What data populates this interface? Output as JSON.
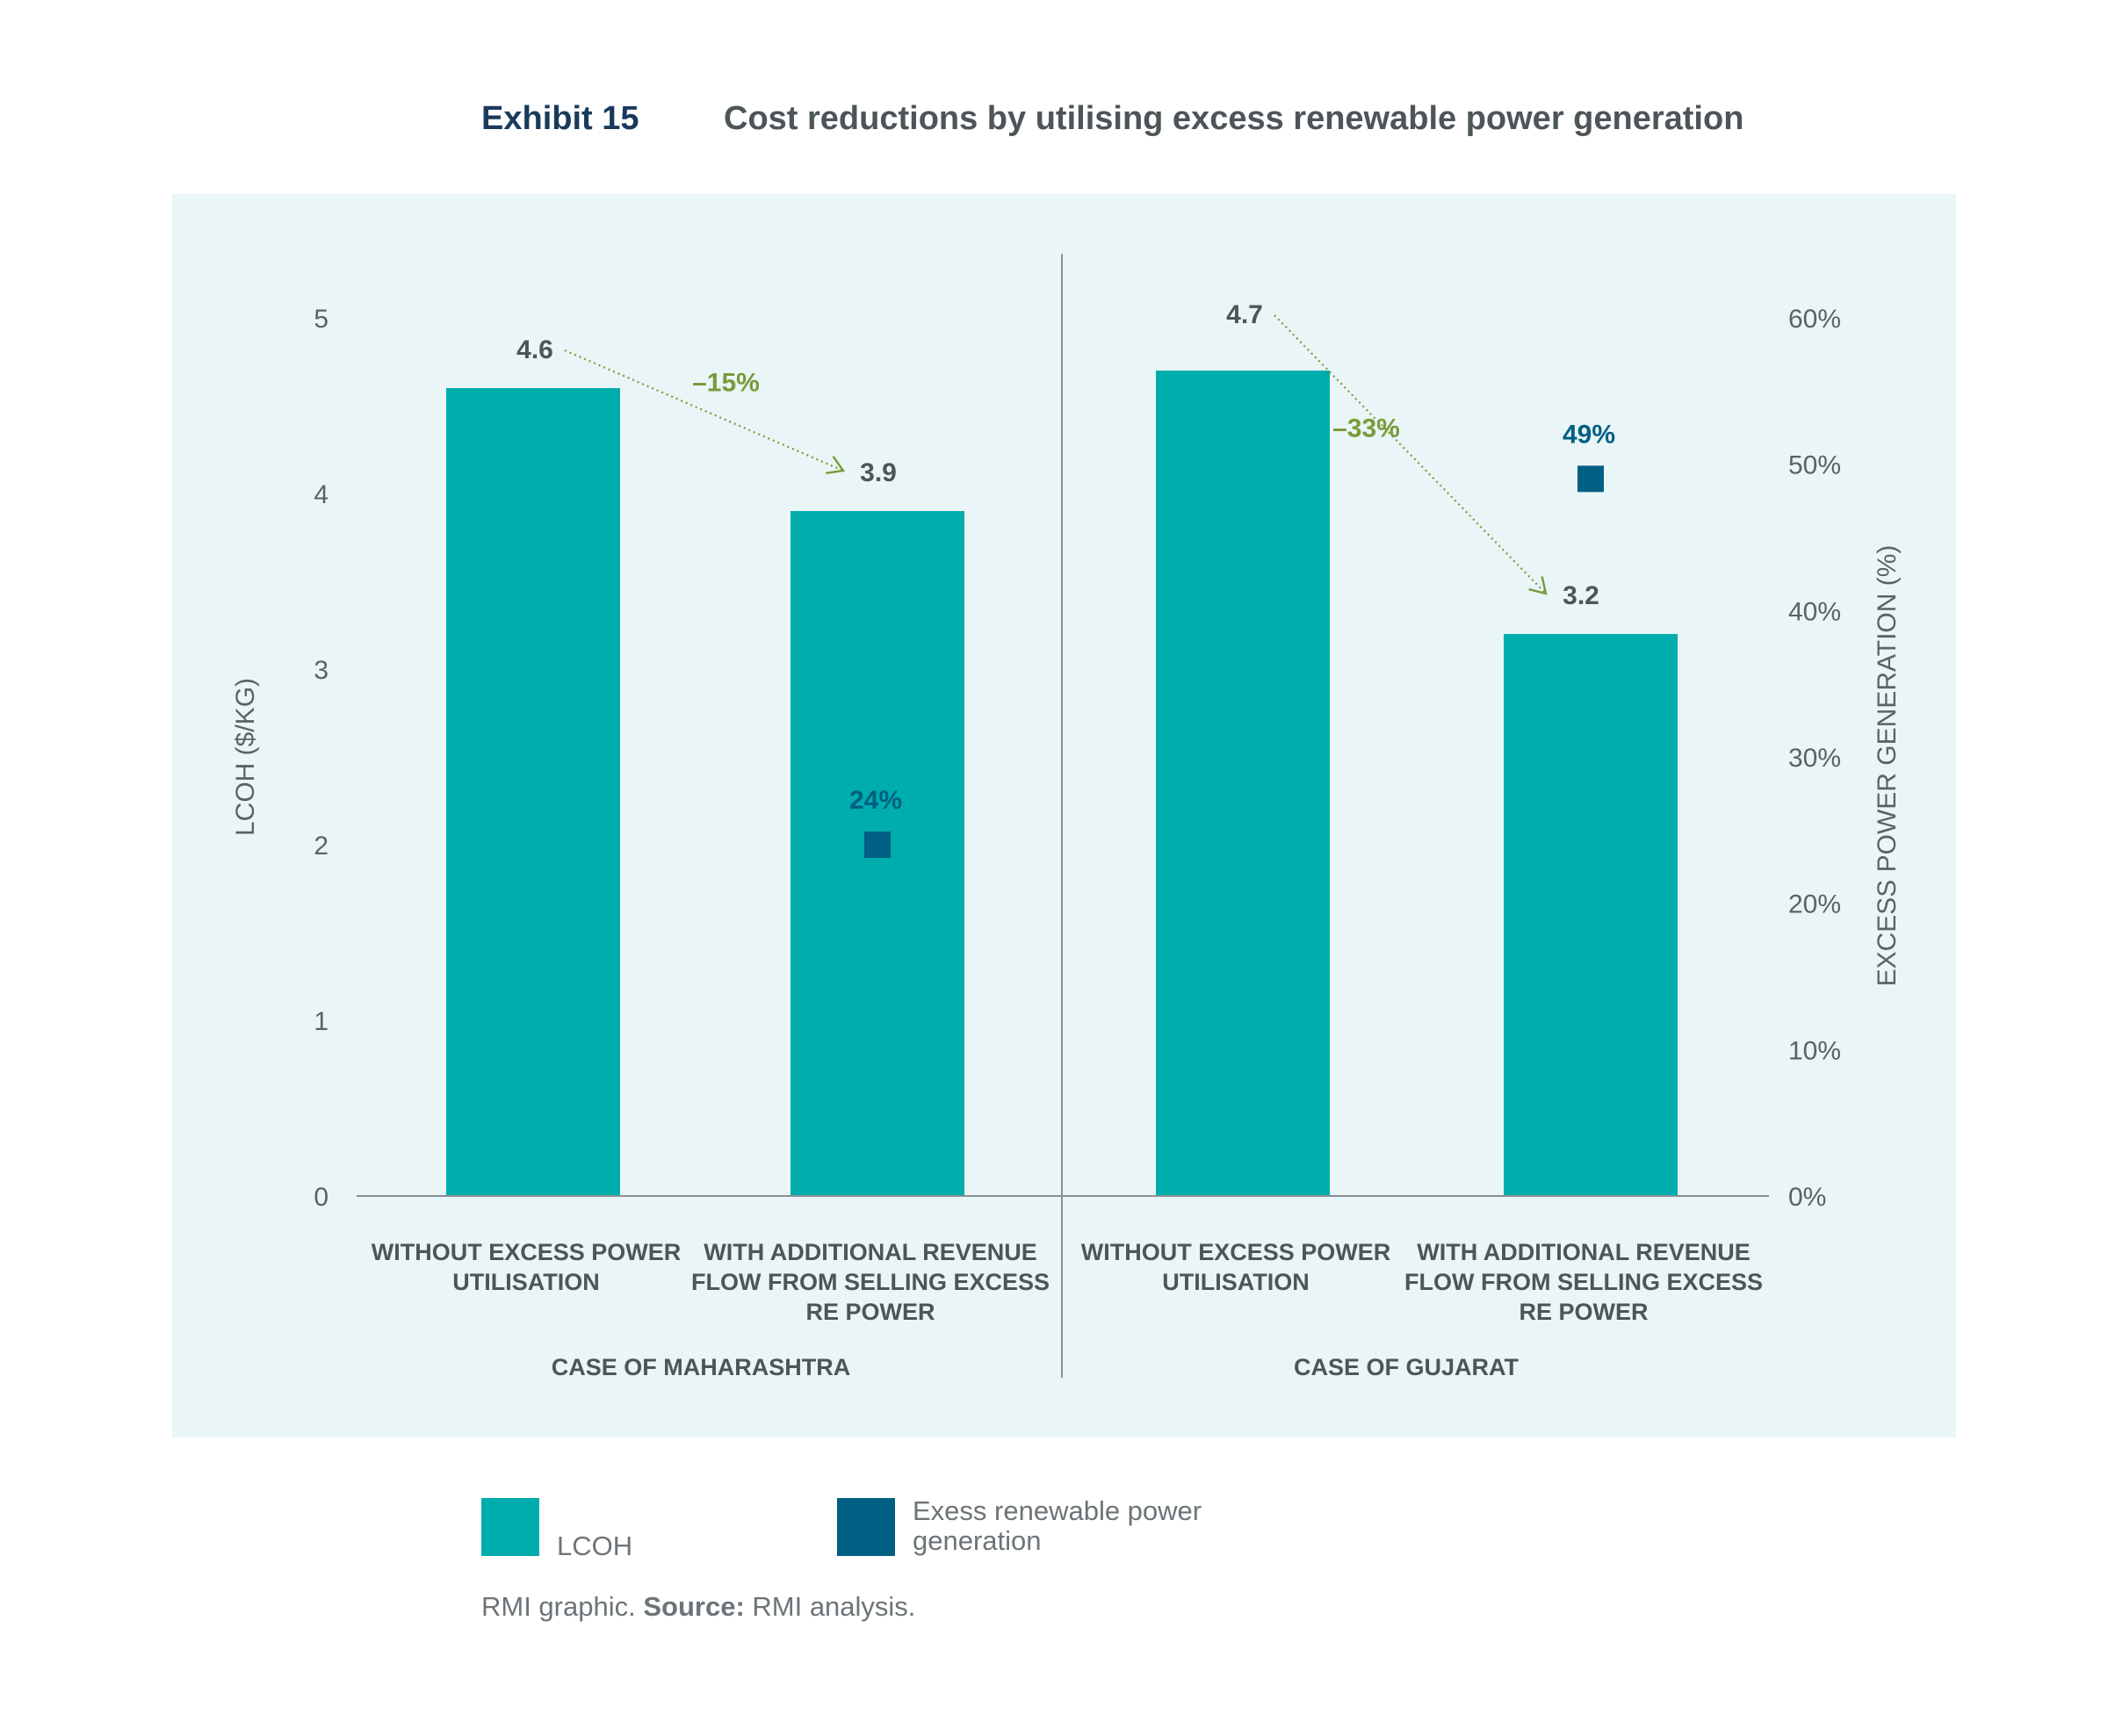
{
  "header": {
    "exhibit_label": "Exhibit 15",
    "title": "Cost reductions by utilising excess renewable power generation"
  },
  "colors": {
    "panel_background": "#e9f5f6",
    "lcoh_bar": "#00adad",
    "excess_marker": "#005f83",
    "reduction_annotation": "#7a9a3a",
    "axis_text": "#5a6266",
    "label_text": "#4d5559",
    "exhibit_label": "#1a3a5c"
  },
  "chart_data": {
    "type": "bar",
    "y_left": {
      "label": "LCOH ($/KG)",
      "range": [
        0,
        5
      ],
      "ticks": [
        "0",
        "1",
        "2",
        "3",
        "4",
        "5"
      ]
    },
    "y_right": {
      "label": "EXCESS POWER GENERATION (%)",
      "range": [
        0,
        60
      ],
      "ticks": [
        "0%",
        "10%",
        "20%",
        "30%",
        "40%",
        "50%",
        "60%"
      ]
    },
    "groups": [
      {
        "name": "CASE OF MAHARASHTRA",
        "bars": [
          {
            "label_lines": [
              "WITHOUT EXCESS POWER",
              "UTILISATION"
            ],
            "lcoh": 4.6,
            "lcoh_label": "4.6",
            "excess_pct": null
          },
          {
            "label_lines": [
              "WITH ADDITIONAL REVENUE",
              "FLOW FROM SELLING EXCESS",
              "RE POWER"
            ],
            "lcoh": 3.9,
            "lcoh_label": "3.9",
            "excess_pct": 24,
            "excess_label": "24%"
          }
        ],
        "reduction_label": "–15%"
      },
      {
        "name": "CASE OF GUJARAT",
        "bars": [
          {
            "label_lines": [
              "WITHOUT EXCESS POWER",
              "UTILISATION"
            ],
            "lcoh": 4.7,
            "lcoh_label": "4.7",
            "excess_pct": null
          },
          {
            "label_lines": [
              "WITH ADDITIONAL REVENUE",
              "FLOW FROM SELLING EXCESS",
              "RE POWER"
            ],
            "lcoh": 3.2,
            "lcoh_label": "3.2",
            "excess_pct": 49,
            "excess_label": "49%"
          }
        ],
        "reduction_label": "–33%"
      }
    ],
    "series": [
      {
        "name": "LCOH",
        "axis": "left",
        "values": [
          4.6,
          3.9,
          4.7,
          3.2
        ]
      },
      {
        "name": "Exess renewable power generation",
        "axis": "right",
        "values": [
          null,
          24,
          null,
          49
        ]
      }
    ],
    "legend": [
      {
        "name": "LCOH",
        "color": "#00adad"
      },
      {
        "name": "Exess renewable power generation",
        "color": "#005f83"
      }
    ],
    "grid": false,
    "legend_position": "bottom-left"
  },
  "legend": {
    "lcoh_label": "LCOH",
    "excess_label": "Exess renewable power generation"
  },
  "source": {
    "prefix": "RMI graphic. ",
    "bold": "Source:",
    "suffix": " RMI analysis."
  }
}
